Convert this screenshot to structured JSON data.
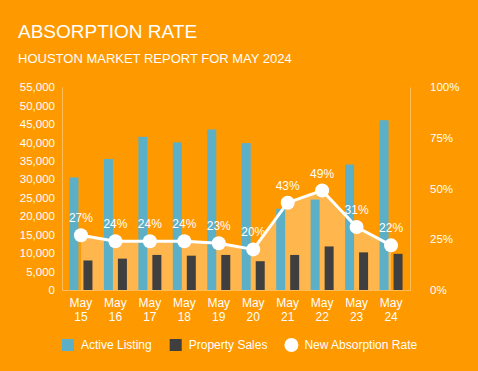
{
  "chart_data": {
    "type": "bar",
    "title": "ABSORPTION RATE",
    "subtitle": "HOUSTON MARKET REPORT FOR MAY 2024",
    "categories": [
      "May 15",
      "May 16",
      "May 17",
      "May 18",
      "May 19",
      "May 20",
      "May 21",
      "May 22",
      "May 23",
      "May 24"
    ],
    "series": [
      {
        "name": "Active Listing",
        "color": "#5bb0c8",
        "values": [
          30500,
          35500,
          41500,
          40000,
          43500,
          39800,
          22000,
          24500,
          34000,
          46000
        ]
      },
      {
        "name": "Property Sales",
        "color": "#3f3f3f",
        "values": [
          8000,
          8500,
          9500,
          9300,
          9500,
          7800,
          9500,
          11800,
          10200,
          9800
        ]
      },
      {
        "name": "New Absorption Rate",
        "color": "#ffffff",
        "type": "area",
        "axis": "y2",
        "marker": "circle",
        "values": [
          27,
          24,
          24,
          24,
          23,
          20,
          43,
          49,
          31,
          22
        ],
        "value_labels": [
          "27%",
          "24%",
          "24%",
          "24%",
          "23%",
          "20%",
          "43%",
          "49%",
          "31%",
          "22%"
        ]
      }
    ],
    "ylim": [
      0,
      55000
    ],
    "yticks": [
      0,
      {
        "value": 5000,
        "label": "5,000"
      },
      {
        "value": 10000,
        "label": "10,000"
      },
      {
        "value": 15000,
        "label": "15,000"
      },
      {
        "value": 20000,
        "label": "20,000"
      },
      {
        "value": 25000,
        "label": "25,000"
      },
      {
        "value": 30000,
        "label": "30,000"
      },
      {
        "value": 35000,
        "label": "35,000"
      },
      {
        "value": 40000,
        "label": "40,000"
      },
      {
        "value": 45000,
        "label": "45,000"
      },
      {
        "value": 50000,
        "label": "50,000"
      },
      {
        "value": 55000,
        "label": "55,000"
      }
    ],
    "y2lim": [
      0,
      100
    ],
    "y2ticks": [
      {
        "value": 0,
        "label": "0%"
      },
      {
        "value": 25,
        "label": "25%"
      },
      {
        "value": 50,
        "label": "50%"
      },
      {
        "value": 75,
        "label": "75%"
      },
      {
        "value": 100,
        "label": "100%"
      }
    ],
    "grid": false,
    "data_labels": true,
    "legend": "bottom"
  }
}
